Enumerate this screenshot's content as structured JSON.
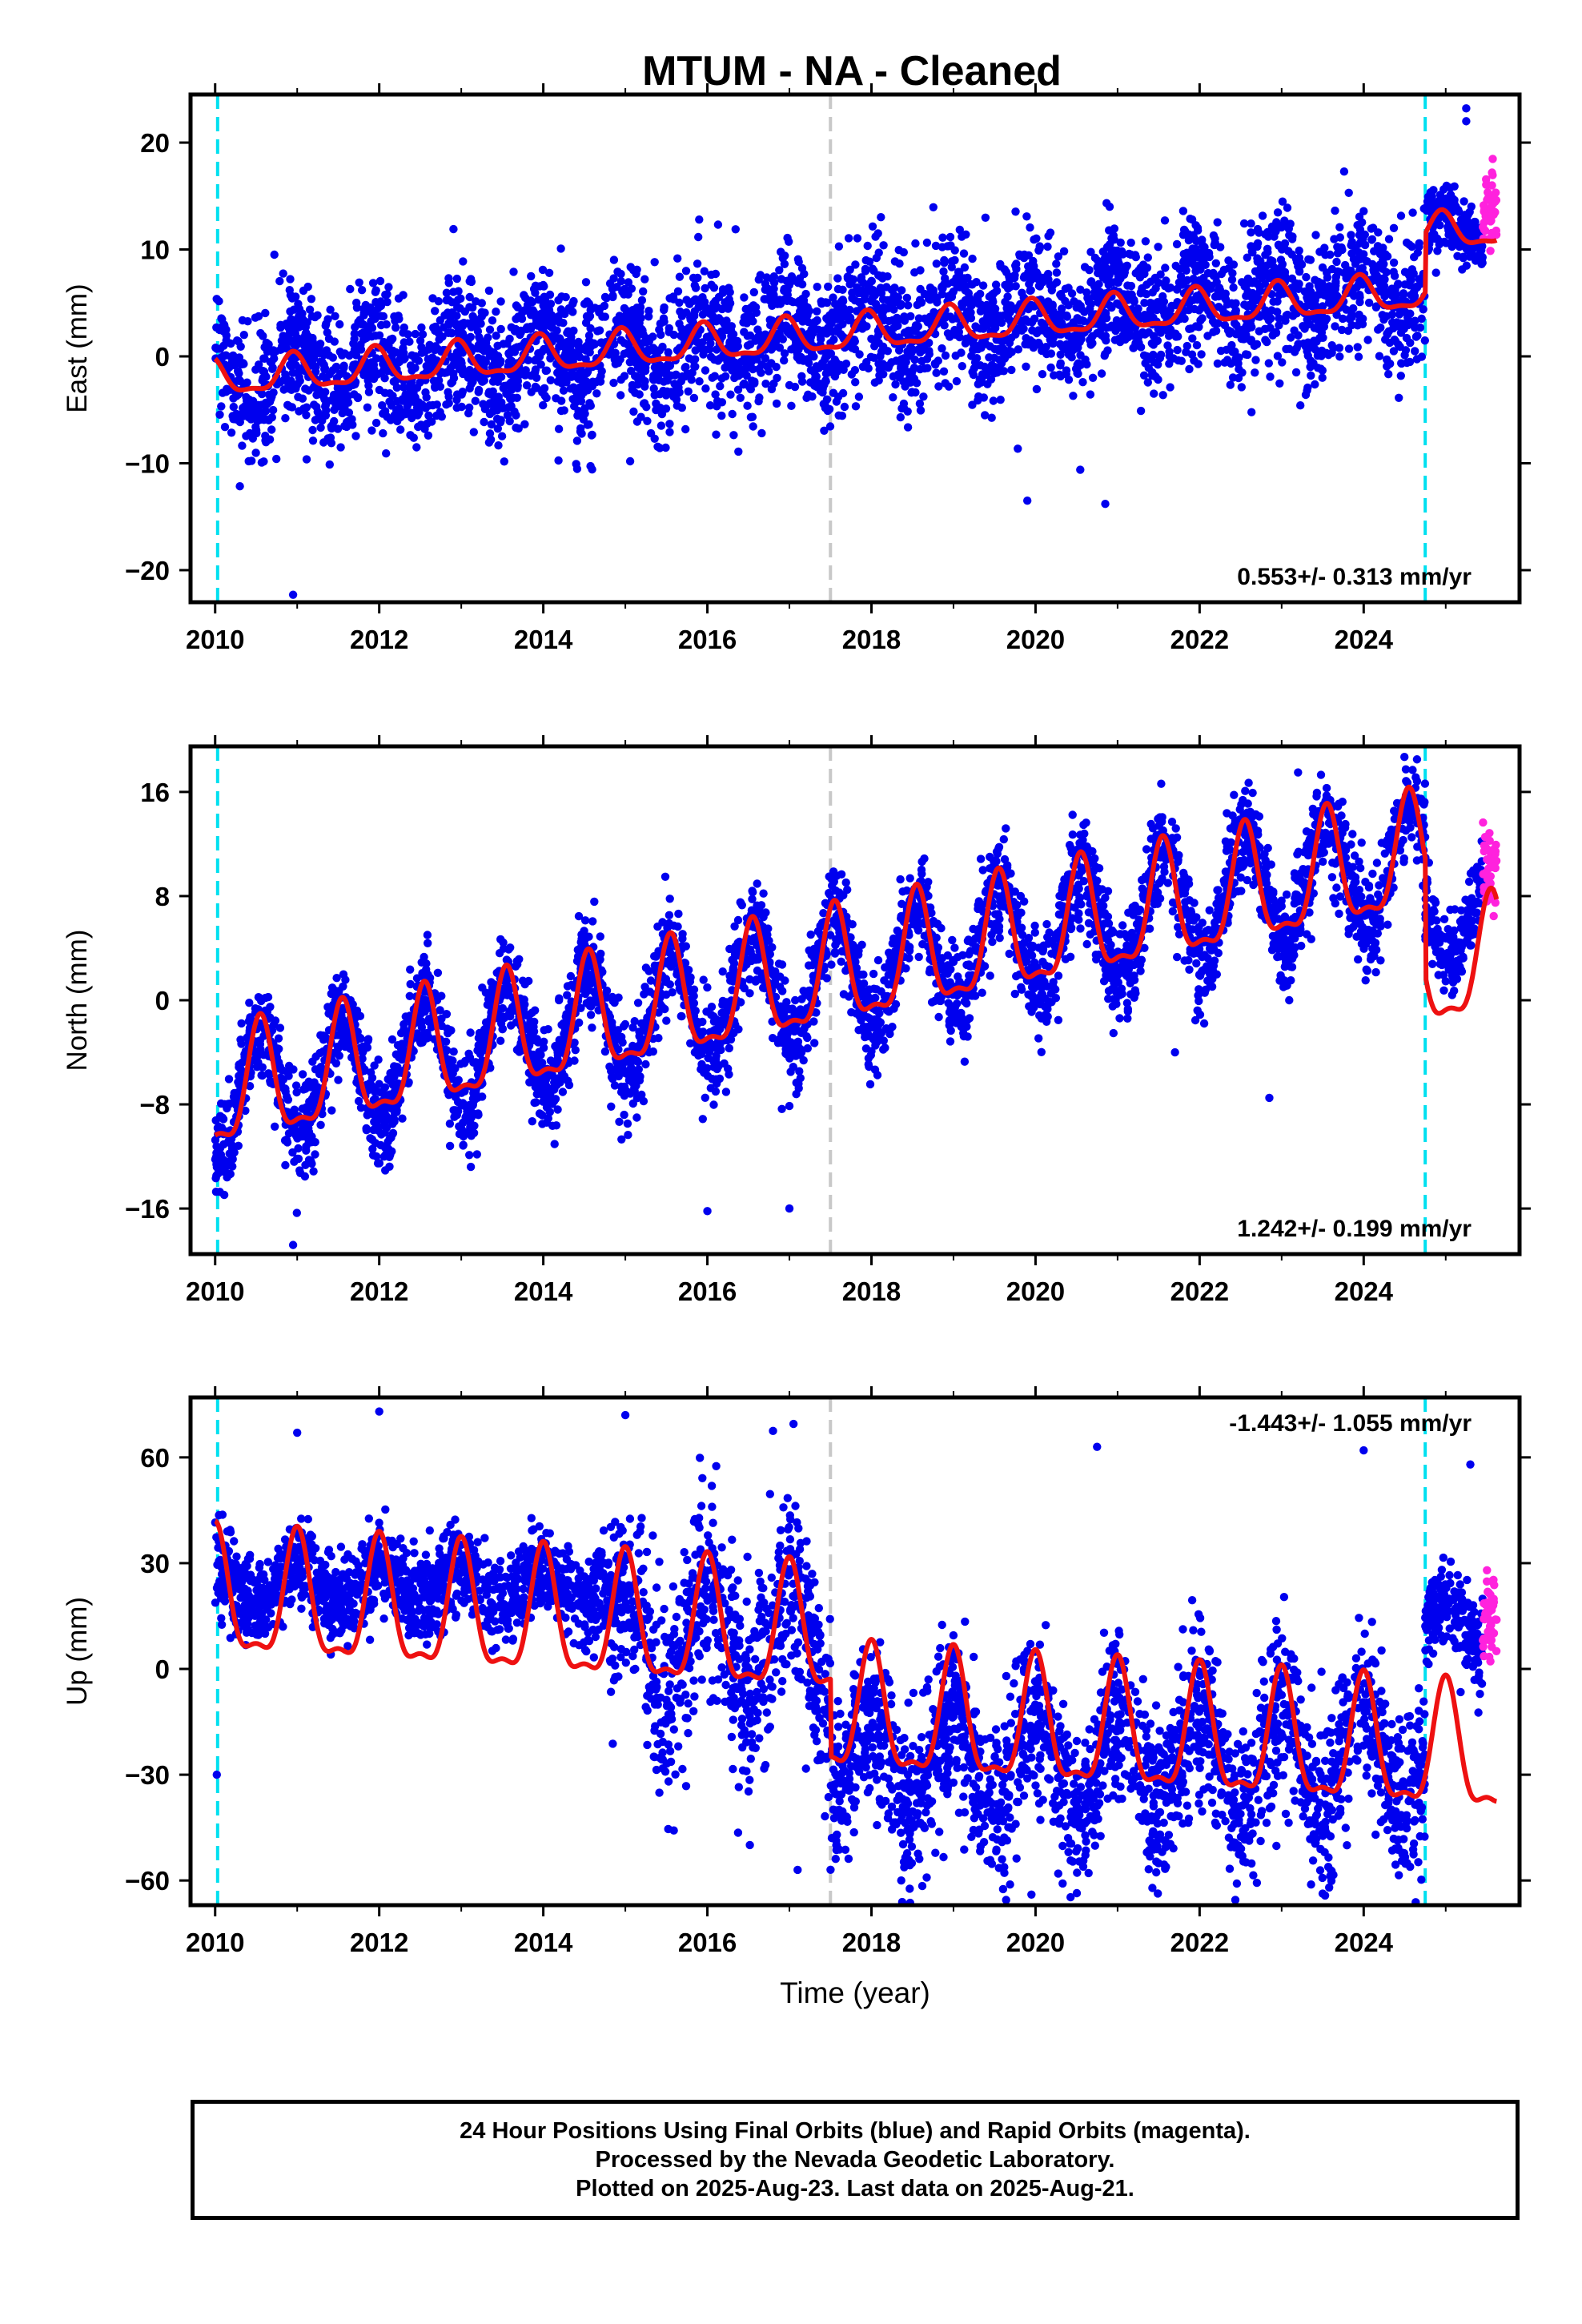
{
  "chart_data": [
    {
      "type": "scatter",
      "panel": "east",
      "title": "MTUM  - NA - Cleaned",
      "ylabel": "East (mm)",
      "xlabel": "",
      "xlim": [
        2009.7,
        2025.9
      ],
      "ylim": [
        -23,
        24.5
      ],
      "yticks": [
        -20,
        -10,
        0,
        10,
        20
      ],
      "ytick_labels": [
        "−20",
        "−10",
        "0",
        "10",
        "20"
      ],
      "xticks": [
        2010,
        2012,
        2014,
        2016,
        2018,
        2020,
        2022,
        2024
      ],
      "xtick_labels": [
        "2010",
        "2012",
        "2014",
        "2016",
        "2018",
        "2020",
        "2022",
        "2024"
      ],
      "velocity_label": "0.553+/- 0.313 mm/yr",
      "velocity_position": "bottom-right",
      "vlines": [
        {
          "x": 2010.03,
          "color": "#00e0f0"
        },
        {
          "x": 2017.5,
          "color": "#c8c8c8"
        },
        {
          "x": 2024.75,
          "color": "#00e0f0"
        }
      ],
      "model": {
        "offset": -2.2,
        "trend": 0.553,
        "annual_amp": 1.6,
        "annual_phase": 0.95,
        "step": {
          "x": 2024.75,
          "size": 5.5
        },
        "color": "#ee1111"
      },
      "series": [
        {
          "color": "#0000ee",
          "x_range": [
            2010.0,
            2024.75
          ],
          "scatter": 3.2,
          "seasonal": 2.2,
          "seasonal_phase": 0.95,
          "base": -2.2,
          "trend": 0.6,
          "step": 0
        },
        {
          "color": "#0000ee",
          "x_range": [
            2024.75,
            2025.45
          ],
          "scatter": 1.5,
          "seasonal": 1.5,
          "seasonal_phase": 0.95,
          "base": 11.6,
          "trend": 0,
          "step": 0
        },
        {
          "color": "#ff22dd",
          "x_range": [
            2025.45,
            2025.62
          ],
          "scatter": 1.6,
          "seasonal": 0,
          "seasonal_phase": 0,
          "base": 14.0,
          "trend": 0,
          "step": 0
        }
      ],
      "outliers": [
        [
          2010.95,
          -22.3
        ],
        [
          2015.9,
          12.8
        ],
        [
          2019.9,
          -13.5
        ],
        [
          2020.85,
          -13.8
        ],
        [
          2025.25,
          23.2
        ],
        [
          2025.25,
          22.0
        ],
        [
          2013.85,
          7.5
        ],
        [
          2021.8,
          13.6
        ]
      ]
    },
    {
      "type": "scatter",
      "panel": "north",
      "title": "",
      "ylabel": "North (mm)",
      "xlabel": "",
      "xlim": [
        2009.7,
        2025.9
      ],
      "ylim": [
        -19.5,
        19.5
      ],
      "yticks": [
        -16,
        -8,
        0,
        8,
        16
      ],
      "ytick_labels": [
        "−16",
        "−8",
        "0",
        "8",
        "16"
      ],
      "xticks": [
        2010,
        2012,
        2014,
        2016,
        2018,
        2020,
        2022,
        2024
      ],
      "xtick_labels": [
        "2010",
        "2012",
        "2014",
        "2016",
        "2018",
        "2020",
        "2022",
        "2024"
      ],
      "velocity_label": "1.242+/- 0.199 mm/yr",
      "velocity_position": "bottom-right",
      "vlines": [
        {
          "x": 2010.03,
          "color": "#00e0f0"
        },
        {
          "x": 2017.5,
          "color": "#c8c8c8"
        },
        {
          "x": 2024.75,
          "color": "#00e0f0"
        }
      ],
      "model": {
        "offset": -7.5,
        "trend": 1.242,
        "annual_amp": 4.3,
        "annual_phase": 0.55,
        "step": {
          "x": 2024.75,
          "size": -9.0
        },
        "color": "#ee1111"
      },
      "series": [
        {
          "color": "#0000ee",
          "x_range": [
            2010.0,
            2024.75
          ],
          "scatter": 1.9,
          "seasonal": 4.4,
          "seasonal_phase": 0.55,
          "base": -7.5,
          "trend": 1.25,
          "step": 0
        },
        {
          "color": "#0000ee",
          "x_range": [
            2024.75,
            2025.45
          ],
          "scatter": 1.5,
          "seasonal": 4.0,
          "seasonal_phase": 0.55,
          "base": 7.0,
          "trend": 0,
          "step": 0
        },
        {
          "color": "#ff22dd",
          "x_range": [
            2025.45,
            2025.62
          ],
          "scatter": 1.4,
          "seasonal": 0,
          "seasonal_phase": 0,
          "base": 10.0,
          "trend": 0,
          "step": 0
        }
      ],
      "outliers": [
        [
          2010.95,
          -18.8
        ],
        [
          2016.0,
          -16.2
        ],
        [
          2017.0,
          -16.0
        ],
        [
          2022.85,
          -7.5
        ],
        [
          2021.7,
          -4.0
        ],
        [
          2023.2,
          17.5
        ],
        [
          2024.65,
          18.5
        ]
      ]
    },
    {
      "type": "scatter",
      "panel": "up",
      "title": "",
      "ylabel": "Up (mm)",
      "xlabel": "Time (year)",
      "xlim": [
        2009.7,
        2025.9
      ],
      "ylim": [
        -67,
        77
      ],
      "yticks": [
        -60,
        -30,
        0,
        30,
        60
      ],
      "ytick_labels": [
        "−60",
        "−30",
        "0",
        "30",
        "60"
      ],
      "xticks": [
        2010,
        2012,
        2014,
        2016,
        2018,
        2020,
        2022,
        2024
      ],
      "xtick_labels": [
        "2010",
        "2012",
        "2014",
        "2016",
        "2018",
        "2020",
        "2022",
        "2024"
      ],
      "velocity_label": "-1.443+/- 1.055 mm/yr",
      "velocity_position": "top-right",
      "vlines": [
        {
          "x": 2010.03,
          "color": "#00e0f0"
        },
        {
          "x": 2017.5,
          "color": "#c8c8c8"
        },
        {
          "x": 2024.75,
          "color": "#00e0f0"
        }
      ],
      "model": {
        "offset": 19.0,
        "trend": -1.443,
        "annual_amp": 17.0,
        "annual_phase": 0.0,
        "step": {
          "x": 2017.5,
          "size": -22.0
        },
        "color": "#ee1111"
      },
      "series": [
        {
          "color": "#0000ee",
          "x_range": [
            2010.0,
            2014.8
          ],
          "scatter": 6.0,
          "seasonal": 5.0,
          "seasonal_phase": 0.0,
          "base": 24.0,
          "trend": 0,
          "step": 0
        },
        {
          "color": "#0000ee",
          "x_range": [
            2014.8,
            2017.5
          ],
          "scatter": 14.0,
          "seasonal": 16.0,
          "seasonal_phase": 0.0,
          "base": 8.0,
          "trend": 0,
          "step": 0
        },
        {
          "color": "#0000ee",
          "x_range": [
            2017.5,
            2024.75
          ],
          "scatter": 12.0,
          "seasonal": 14.0,
          "seasonal_phase": 0.0,
          "base": -26.0,
          "trend": 0,
          "step": 0
        },
        {
          "color": "#0000ee",
          "x_range": [
            2024.75,
            2025.45
          ],
          "scatter": 6.0,
          "seasonal": 8.0,
          "seasonal_phase": 0.0,
          "base": 12.0,
          "trend": 0,
          "step": 0
        },
        {
          "color": "#ff22dd",
          "x_range": [
            2025.45,
            2025.62
          ],
          "scatter": 5.0,
          "seasonal": 0,
          "seasonal_phase": 0,
          "base": 16.0,
          "trend": 0,
          "step": 0
        }
      ],
      "outliers": [
        [
          2010.02,
          -30.0
        ],
        [
          2011.0,
          67.0
        ],
        [
          2012.0,
          73.0
        ],
        [
          2015.0,
          72.0
        ],
        [
          2016.8,
          67.5
        ],
        [
          2017.05,
          69.5
        ],
        [
          2020.75,
          63.0
        ],
        [
          2024.0,
          62.0
        ],
        [
          2025.3,
          58.0
        ],
        [
          2019.95,
          -64.0
        ],
        [
          2017.1,
          -57.0
        ]
      ]
    }
  ],
  "footer": {
    "line1": "24 Hour Positions Using Final Orbits (blue) and Rapid Orbits (magenta).",
    "line2": "Processed by the Nevada Geodetic Laboratory.",
    "line3": "Plotted on 2025-Aug-23. Last data on 2025-Aug-21."
  }
}
